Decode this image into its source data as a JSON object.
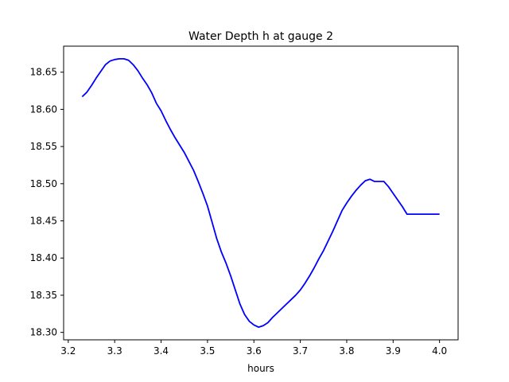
{
  "chart_data": {
    "type": "line",
    "title": "Water Depth h at gauge 2",
    "xlabel": "hours",
    "ylabel": "",
    "xlim": [
      3.19,
      4.04
    ],
    "ylim": [
      18.29,
      18.685
    ],
    "xticks": [
      3.2,
      3.3,
      3.4,
      3.5,
      3.6,
      3.7,
      3.8,
      3.9,
      4.0
    ],
    "xtick_labels": [
      "3.2",
      "3.3",
      "3.4",
      "3.5",
      "3.6",
      "3.7",
      "3.8",
      "3.9",
      "4.0"
    ],
    "yticks": [
      18.3,
      18.35,
      18.4,
      18.45,
      18.5,
      18.55,
      18.6,
      18.65
    ],
    "ytick_labels": [
      "18.30",
      "18.35",
      "18.40",
      "18.45",
      "18.50",
      "18.55",
      "18.60",
      "18.65"
    ],
    "grid": false,
    "series": [
      {
        "color": "#0000ff",
        "x": [
          3.23,
          3.24,
          3.25,
          3.26,
          3.27,
          3.28,
          3.29,
          3.3,
          3.31,
          3.32,
          3.33,
          3.34,
          3.35,
          3.36,
          3.37,
          3.38,
          3.39,
          3.4,
          3.41,
          3.42,
          3.43,
          3.44,
          3.45,
          3.46,
          3.47,
          3.48,
          3.49,
          3.5,
          3.51,
          3.52,
          3.53,
          3.54,
          3.55,
          3.56,
          3.57,
          3.58,
          3.59,
          3.6,
          3.61,
          3.62,
          3.63,
          3.64,
          3.65,
          3.66,
          3.67,
          3.68,
          3.69,
          3.7,
          3.71,
          3.72,
          3.73,
          3.74,
          3.75,
          3.76,
          3.77,
          3.78,
          3.79,
          3.8,
          3.81,
          3.82,
          3.83,
          3.84,
          3.85,
          3.86,
          3.87,
          3.88,
          3.89,
          3.9,
          3.91,
          3.92,
          3.93,
          3.94,
          3.95,
          3.96,
          3.97,
          3.98,
          3.99,
          4.0
        ],
        "values": [
          18.617,
          18.623,
          18.632,
          18.642,
          18.651,
          18.66,
          18.665,
          18.667,
          18.668,
          18.668,
          18.666,
          18.66,
          18.652,
          18.642,
          18.633,
          18.622,
          18.608,
          18.598,
          18.585,
          18.573,
          18.562,
          18.552,
          18.542,
          18.53,
          18.518,
          18.503,
          18.487,
          18.47,
          18.448,
          18.426,
          18.408,
          18.393,
          18.376,
          18.357,
          18.338,
          18.324,
          18.315,
          18.31,
          18.307,
          18.309,
          18.313,
          18.32,
          18.326,
          18.332,
          18.338,
          18.344,
          18.35,
          18.357,
          18.366,
          18.376,
          18.387,
          18.399,
          18.41,
          18.423,
          18.436,
          18.45,
          18.464,
          18.474,
          18.483,
          18.491,
          18.498,
          18.504,
          18.506,
          18.503,
          18.503,
          18.503,
          18.496,
          18.487,
          18.478,
          18.469,
          18.459,
          18.459,
          18.459,
          18.459,
          18.459,
          18.459,
          18.459,
          18.459
        ]
      }
    ]
  }
}
